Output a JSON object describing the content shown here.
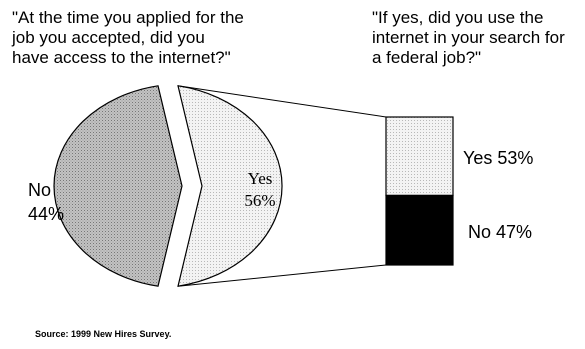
{
  "chart_data": [
    {
      "type": "pie",
      "title": "\"At the time you applied for the\njob you accepted, did you\nhave access to the internet?\"",
      "slices": [
        {
          "label": "No",
          "value": 44,
          "display": "44%",
          "color": "#b9b9b9"
        },
        {
          "label": "Yes",
          "value": 56,
          "display": "56%",
          "color": "#ececec"
        }
      ]
    },
    {
      "type": "bar",
      "stacked": true,
      "title": "\"If yes, did you use the\ninternet in your search for\na federal job?\"",
      "categories": [
        "Yes"
      ],
      "series": [
        {
          "name": "Yes",
          "values": [
            53
          ],
          "display": "53%",
          "color": "#e9e9e9"
        },
        {
          "name": "No",
          "values": [
            47
          ],
          "display": "47%",
          "color": "#000000"
        }
      ]
    }
  ],
  "source": "Source:  1999 New Hires Survey."
}
